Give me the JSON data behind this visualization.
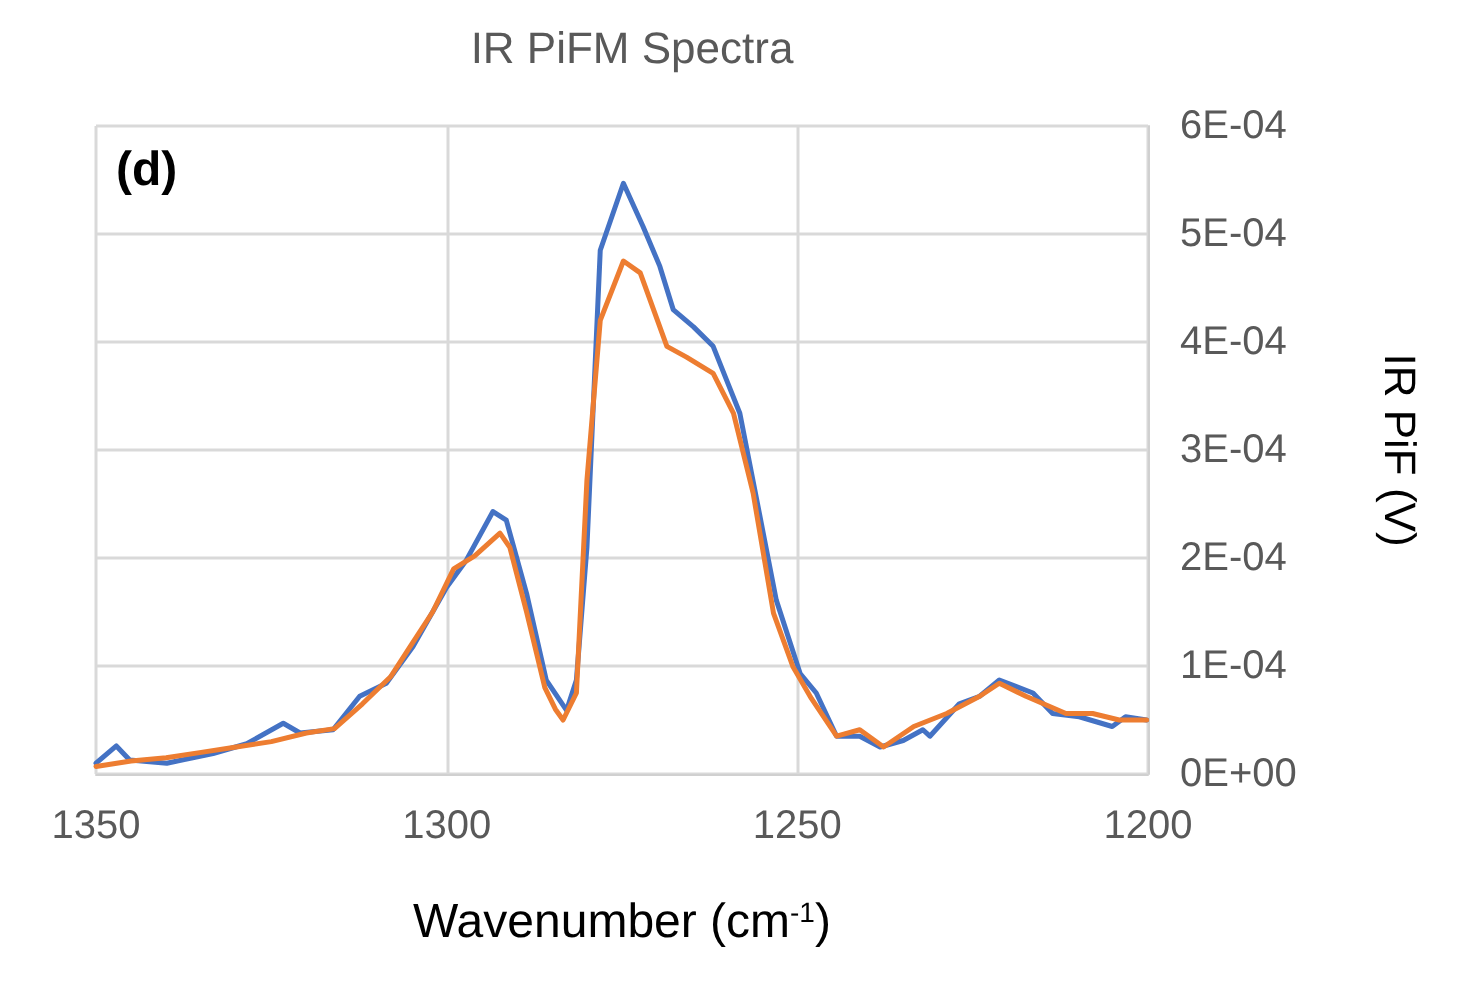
{
  "chart_data": {
    "type": "line",
    "title": "IR PiFM Spectra",
    "xlabel": "Wavenumber (cm$^{-1}$)",
    "ylabel": "IR PiF (V)",
    "annotations": [
      "(d)"
    ],
    "xlim": [
      1350,
      1200
    ],
    "xticks": [
      1350,
      1300,
      1250,
      1200
    ],
    "ylim": [
      0,
      0.0006
    ],
    "yticks": [
      {
        "value": 0,
        "label": "0E+00"
      },
      {
        "value": 0.0001,
        "label": "1E-04"
      },
      {
        "value": 0.0002,
        "label": "2E-04"
      },
      {
        "value": 0.0003,
        "label": "3E-04"
      },
      {
        "value": 0.0004,
        "label": "4E-04"
      },
      {
        "value": 0.0005,
        "label": "5E-04"
      },
      {
        "value": 0.0006,
        "label": "6E-04"
      }
    ],
    "grid": true,
    "marker": "none",
    "line_style": "solid",
    "series": [
      {
        "color": "#4472c4",
        "x": [
          1350,
          1347.1,
          1345.2,
          1339.9,
          1333.3,
          1328.5,
          1323.3,
          1320.9,
          1316.2,
          1312.4,
          1308.6,
          1304.8,
          1300,
          1297.2,
          1293.4,
          1291.5,
          1288.6,
          1285.8,
          1282.9,
          1281.5,
          1280,
          1278.1,
          1274.8,
          1272,
          1269.6,
          1267.7,
          1264.8,
          1262,
          1260.1,
          1258.2,
          1255.4,
          1253,
          1249.6,
          1247.3,
          1244.4,
          1241.1,
          1238.2,
          1234.9,
          1232.1,
          1231.1,
          1226.9,
          1224,
          1221.2,
          1216.4,
          1213.6,
          1209.8,
          1205.1,
          1203.2,
          1200.2
        ],
        "values": [
          1e-05,
          2.6e-05,
          1.3e-05,
          1e-05,
          1.9e-05,
          2.8e-05,
          4.7e-05,
          3.8e-05,
          4.1e-05,
          7.2e-05,
          8.4e-05,
          0.000118,
          0.000173,
          0.000198,
          0.000243,
          0.000235,
          0.000167,
          8.7e-05,
          5.9e-05,
          8.7e-05,
          0.00021,
          0.000485,
          0.000547,
          0.000507,
          0.00047,
          0.00043,
          0.000414,
          0.000396,
          0.000365,
          0.000334,
          0.000241,
          0.000161,
          9.3e-05,
          7.5e-05,
          3.5e-05,
          3.5e-05,
          2.5e-05,
          3.1e-05,
          4.1e-05,
          3.5e-05,
          6.5e-05,
          7.2e-05,
          8.7e-05,
          7.5e-05,
          5.6e-05,
          5.3e-05,
          4.4e-05,
          5.3e-05,
          5e-05
        ]
      },
      {
        "color": "#ed7d31",
        "x": [
          1350,
          1345,
          1340,
          1335,
          1330,
          1325,
          1320,
          1316,
          1312,
          1308,
          1305,
          1302,
          1299,
          1296,
          1292.4,
          1291,
          1288.6,
          1286,
          1284.5,
          1283.4,
          1281.5,
          1280,
          1278.1,
          1274.8,
          1272.4,
          1268.6,
          1265.8,
          1262,
          1259.1,
          1256.3,
          1253.4,
          1250.6,
          1248,
          1244.4,
          1241.1,
          1237.7,
          1233.4,
          1228.7,
          1224,
          1221.2,
          1217.4,
          1211.7,
          1207.9,
          1204.1,
          1200.2
        ],
        "values": [
          7e-06,
          1.2e-05,
          1.5e-05,
          2e-05,
          2.5e-05,
          3e-05,
          3.8e-05,
          4.2e-05,
          6.5e-05,
          9e-05,
          0.00012,
          0.00015,
          0.00019,
          0.000202,
          0.000223,
          0.00021,
          0.00015,
          8e-05,
          6e-05,
          5e-05,
          7.5e-05,
          0.000272,
          0.00042,
          0.000475,
          0.000464,
          0.000396,
          0.000386,
          0.000371,
          0.000334,
          0.00026,
          0.000149,
          9.9e-05,
          7e-05,
          3.5e-05,
          4.1e-05,
          2.5e-05,
          4.4e-05,
          5.6e-05,
          7.2e-05,
          8.4e-05,
          7.2e-05,
          5.6e-05,
          5.6e-05,
          5e-05,
          5e-05
        ]
      }
    ]
  }
}
